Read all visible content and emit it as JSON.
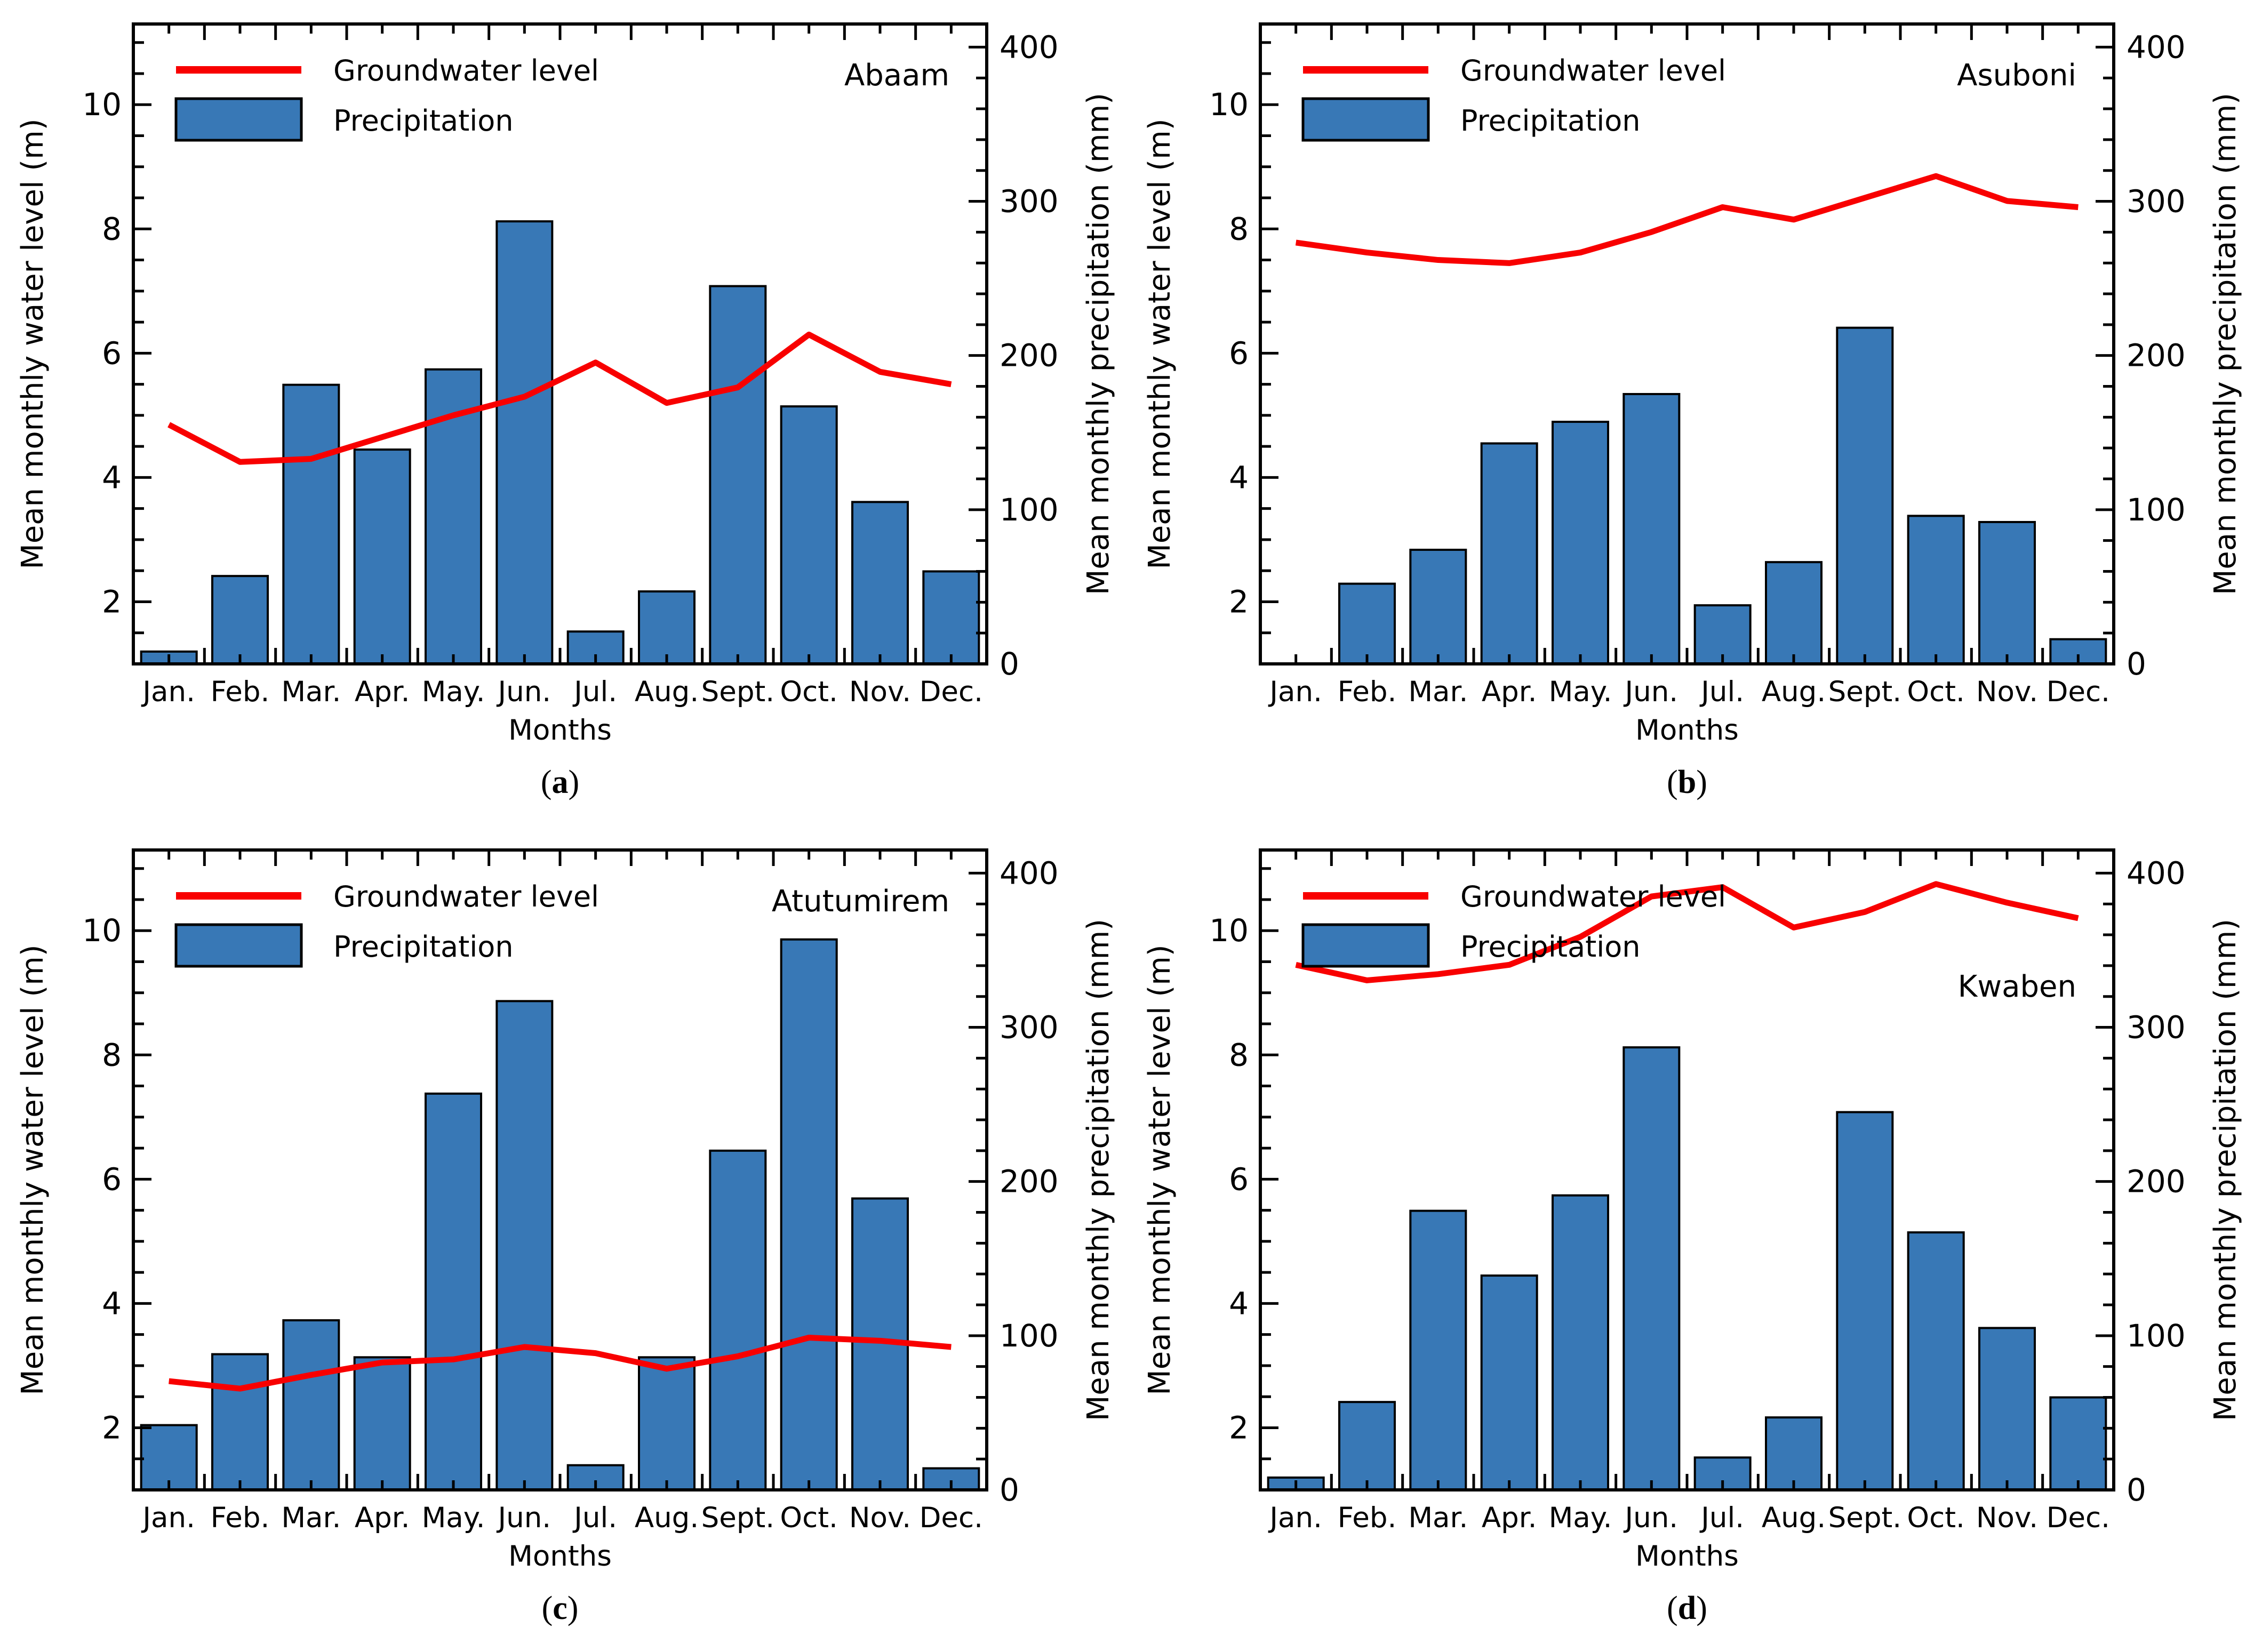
{
  "figure": {
    "background": "#ffffff",
    "colors": {
      "bar_fill": "#3878b6",
      "bar_edge": "#000000",
      "line_color": "#f80000",
      "axis_color": "#000000"
    },
    "legend": {
      "groundwater_label": "Groundwater level",
      "precipitation_label": "Precipitation"
    },
    "months": [
      "Jan.",
      "Feb.",
      "Mar.",
      "Apr.",
      "May.",
      "Jun.",
      "Jul.",
      "Aug.",
      "Sept.",
      "Oct.",
      "Nov.",
      "Dec."
    ],
    "x_axis_label": "Months",
    "left_axis_label": "Mean monthly water level (m)",
    "right_axis_label": "Mean monthly precipitation (mm)"
  },
  "chart_data": [
    {
      "type": "bar",
      "panel": "a",
      "station": "Abaam",
      "caption_letter": "a",
      "categories": [
        "Jan.",
        "Feb.",
        "Mar.",
        "Apr.",
        "May.",
        "Jun.",
        "Jul.",
        "Aug.",
        "Sept.",
        "Oct.",
        "Nov.",
        "Dec."
      ],
      "series": [
        {
          "name": "Groundwater level",
          "type": "line",
          "axis": "left",
          "unit": "m",
          "values": [
            4.85,
            4.25,
            4.3,
            4.65,
            5.0,
            5.3,
            5.85,
            5.2,
            5.45,
            6.3,
            5.7,
            5.5
          ]
        },
        {
          "name": "Precipitation",
          "type": "bar",
          "axis": "right",
          "unit": "mm",
          "values": [
            8,
            57,
            181,
            139,
            191,
            287,
            21,
            47,
            245,
            167,
            105,
            60
          ]
        }
      ],
      "left_axis": {
        "label": "Mean monthly water level (m)",
        "ticks": [
          2,
          4,
          6,
          8,
          10
        ],
        "range": [
          1,
          11.3
        ]
      },
      "right_axis": {
        "label": "Mean monthly precipitation (mm)",
        "ticks": [
          0,
          100,
          200,
          300,
          400
        ],
        "range": [
          0,
          415
        ]
      },
      "xlabel": "Months",
      "legend_position": "top-left",
      "grid": false
    },
    {
      "type": "bar",
      "panel": "b",
      "station": "Asuboni",
      "caption_letter": "b",
      "categories": [
        "Jan.",
        "Feb.",
        "Mar.",
        "Apr.",
        "May.",
        "Jun.",
        "Jul.",
        "Aug.",
        "Sept.",
        "Oct.",
        "Nov.",
        "Dec."
      ],
      "series": [
        {
          "name": "Groundwater level",
          "type": "line",
          "axis": "left",
          "unit": "m",
          "values": [
            7.78,
            7.62,
            7.5,
            7.45,
            7.62,
            7.95,
            8.35,
            8.15,
            8.5,
            8.85,
            8.45,
            8.35
          ]
        },
        {
          "name": "Precipitation",
          "type": "bar",
          "axis": "right",
          "unit": "mm",
          "values": [
            0,
            52,
            74,
            143,
            157,
            175,
            38,
            66,
            218,
            96,
            92,
            16
          ]
        }
      ],
      "left_axis": {
        "label": "Mean monthly water level (m)",
        "ticks": [
          2,
          4,
          6,
          8,
          10
        ],
        "range": [
          1,
          11.3
        ]
      },
      "right_axis": {
        "label": "Mean monthly precipitation (mm)",
        "ticks": [
          0,
          100,
          200,
          300,
          400
        ],
        "range": [
          0,
          415
        ]
      },
      "xlabel": "Months",
      "legend_position": "top-left",
      "grid": false
    },
    {
      "type": "bar",
      "panel": "c",
      "station": "Atutumirem",
      "caption_letter": "c",
      "categories": [
        "Jan.",
        "Feb.",
        "Mar.",
        "Apr.",
        "May.",
        "Jun.",
        "Jul.",
        "Aug.",
        "Sept.",
        "Oct.",
        "Nov.",
        "Dec."
      ],
      "series": [
        {
          "name": "Groundwater level",
          "type": "line",
          "axis": "left",
          "unit": "m",
          "values": [
            2.75,
            2.63,
            2.85,
            3.05,
            3.1,
            3.3,
            3.2,
            2.95,
            3.15,
            3.45,
            3.4,
            3.3
          ]
        },
        {
          "name": "Precipitation",
          "type": "bar",
          "axis": "right",
          "unit": "mm",
          "values": [
            42,
            88,
            110,
            86,
            257,
            317,
            16,
            86,
            220,
            357,
            189,
            14
          ]
        }
      ],
      "left_axis": {
        "label": "Mean monthly water level (m)",
        "ticks": [
          2,
          4,
          6,
          8,
          10
        ],
        "range": [
          1,
          11.3
        ]
      },
      "right_axis": {
        "label": "Mean monthly precipitation (mm)",
        "ticks": [
          0,
          100,
          200,
          300,
          400
        ],
        "range": [
          0,
          415
        ]
      },
      "xlabel": "Months",
      "legend_position": "top-left",
      "grid": false
    },
    {
      "type": "bar",
      "panel": "d",
      "station": "Kwaben",
      "caption_letter": "d",
      "categories": [
        "Jan.",
        "Feb.",
        "Mar.",
        "Apr.",
        "May.",
        "Jun.",
        "Jul.",
        "Aug.",
        "Sept.",
        "Oct.",
        "Nov.",
        "Dec."
      ],
      "series": [
        {
          "name": "Groundwater level",
          "type": "line",
          "axis": "left",
          "unit": "m",
          "values": [
            9.45,
            9.2,
            9.3,
            9.45,
            9.9,
            10.55,
            10.7,
            10.05,
            10.3,
            10.75,
            10.45,
            10.2
          ]
        },
        {
          "name": "Precipitation",
          "type": "bar",
          "axis": "right",
          "unit": "mm",
          "values": [
            8,
            57,
            181,
            139,
            191,
            287,
            21,
            47,
            245,
            167,
            105,
            60
          ]
        }
      ],
      "left_axis": {
        "label": "Mean monthly water level (m)",
        "ticks": [
          2,
          4,
          6,
          8,
          10
        ],
        "range": [
          1,
          11.3
        ]
      },
      "right_axis": {
        "label": "Mean monthly precipitation (mm)",
        "ticks": [
          0,
          100,
          200,
          300,
          400
        ],
        "range": [
          0,
          415
        ]
      },
      "xlabel": "Months",
      "legend_position": "top-left",
      "grid": false
    }
  ]
}
